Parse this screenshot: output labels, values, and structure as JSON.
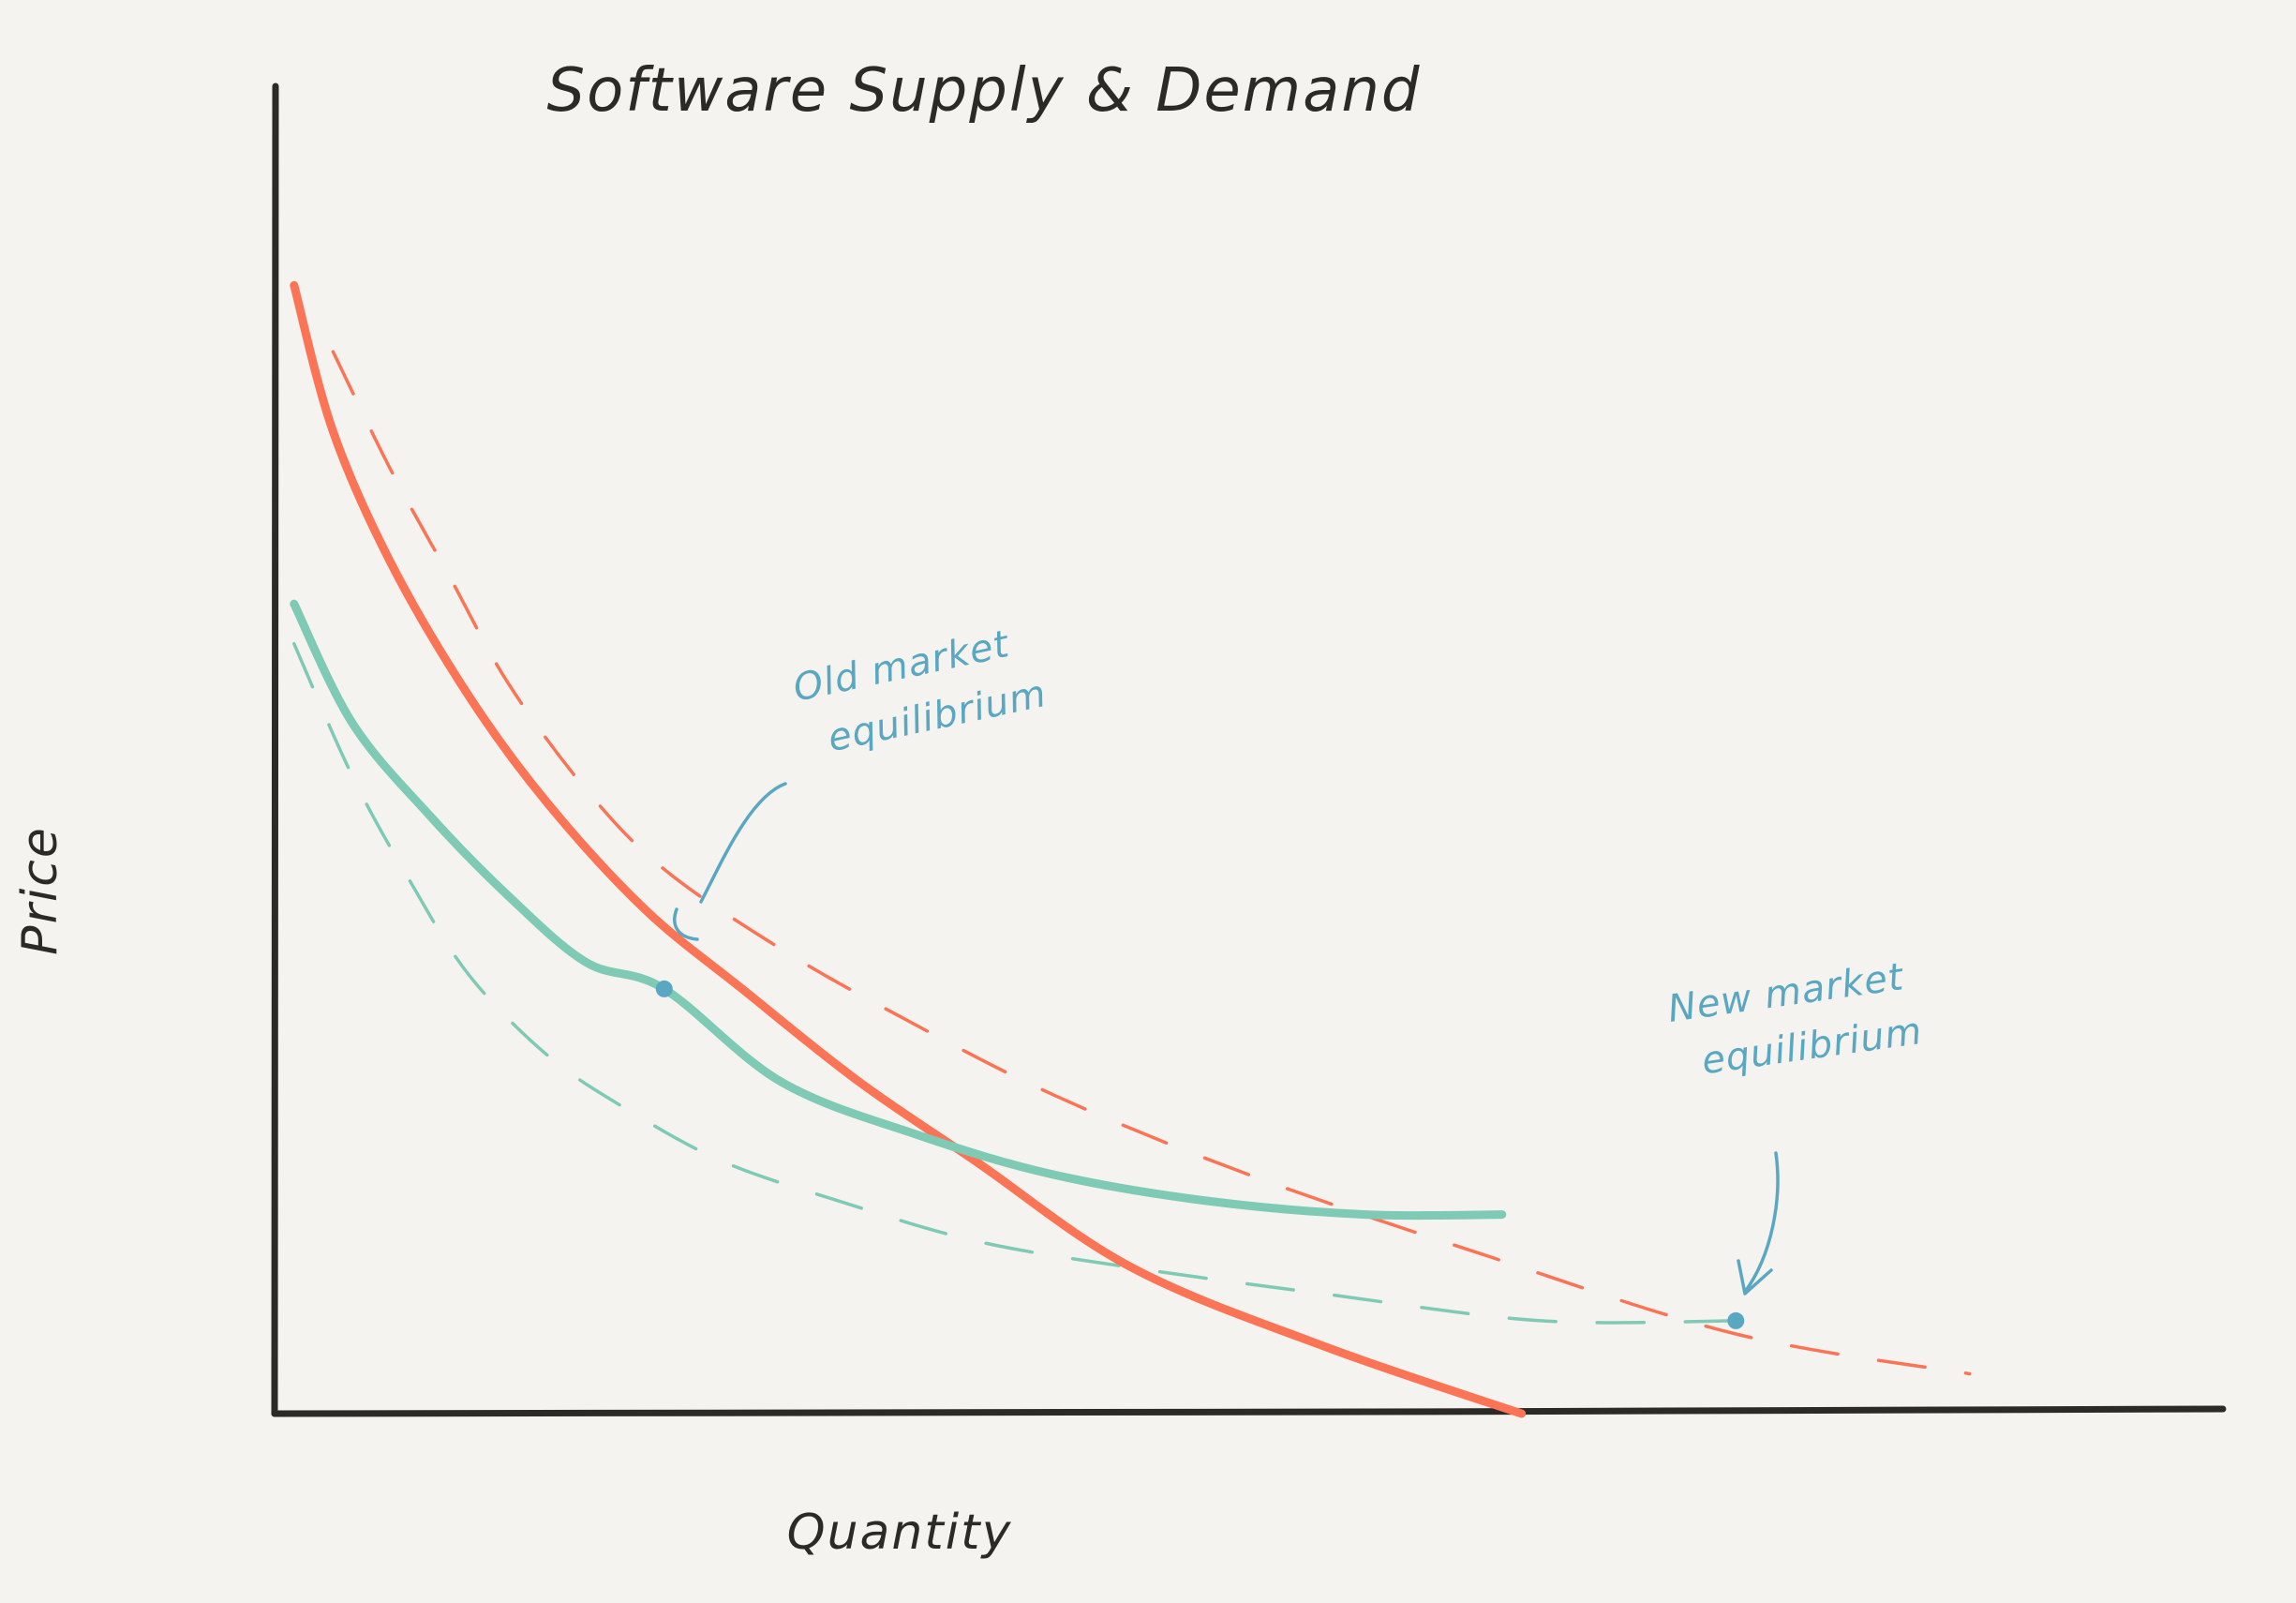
{
  "chart_data": {
    "type": "line",
    "title": "Software Supply & Demand",
    "xlabel": "Quantity",
    "ylabel": "Price",
    "xlim": [
      0,
      100
    ],
    "ylim": [
      0,
      100
    ],
    "grid": false,
    "legend": "none",
    "series": [
      {
        "style": "solid",
        "color": "#fa7455",
        "x": [
          1,
          3,
          6,
          10,
          14,
          19,
          24,
          30,
          36,
          44,
          54,
          64
        ],
        "y": [
          85,
          74,
          64,
          54,
          46,
          38,
          32,
          25,
          19,
          11,
          5,
          0
        ]
      },
      {
        "style": "dashed",
        "color": "#fa7455",
        "x": [
          3,
          6,
          9,
          12,
          16,
          20,
          26,
          32,
          40,
          50,
          62,
          75,
          87
        ],
        "y": [
          80,
          71,
          63,
          55,
          47,
          41,
          35,
          30,
          24,
          18,
          12,
          6,
          3
        ]
      },
      {
        "style": "solid",
        "color": "#7ecab4",
        "x": [
          1,
          4,
          8,
          12,
          16,
          20,
          26,
          33,
          40,
          48,
          56,
          63
        ],
        "y": [
          61,
          52,
          45,
          39,
          34,
          32,
          25,
          21,
          18,
          16,
          15,
          15
        ]
      },
      {
        "style": "dashed",
        "color": "#7ecab4",
        "x": [
          1,
          4,
          7,
          10,
          14,
          18,
          23,
          29,
          36,
          44,
          54,
          65,
          75
        ],
        "y": [
          58,
          48,
          40,
          33,
          27,
          23,
          19,
          16,
          13,
          11,
          9,
          7,
          7
        ]
      }
    ],
    "points": [
      {
        "x": 20,
        "y": 32,
        "color": "#5aa7c2"
      },
      {
        "x": 75,
        "y": 7,
        "color": "#5aa7c2"
      }
    ],
    "annotations": [
      {
        "line1": "Old market",
        "line2": "equilibrium"
      },
      {
        "line1": "New market",
        "line2": "equilibrium"
      }
    ]
  }
}
